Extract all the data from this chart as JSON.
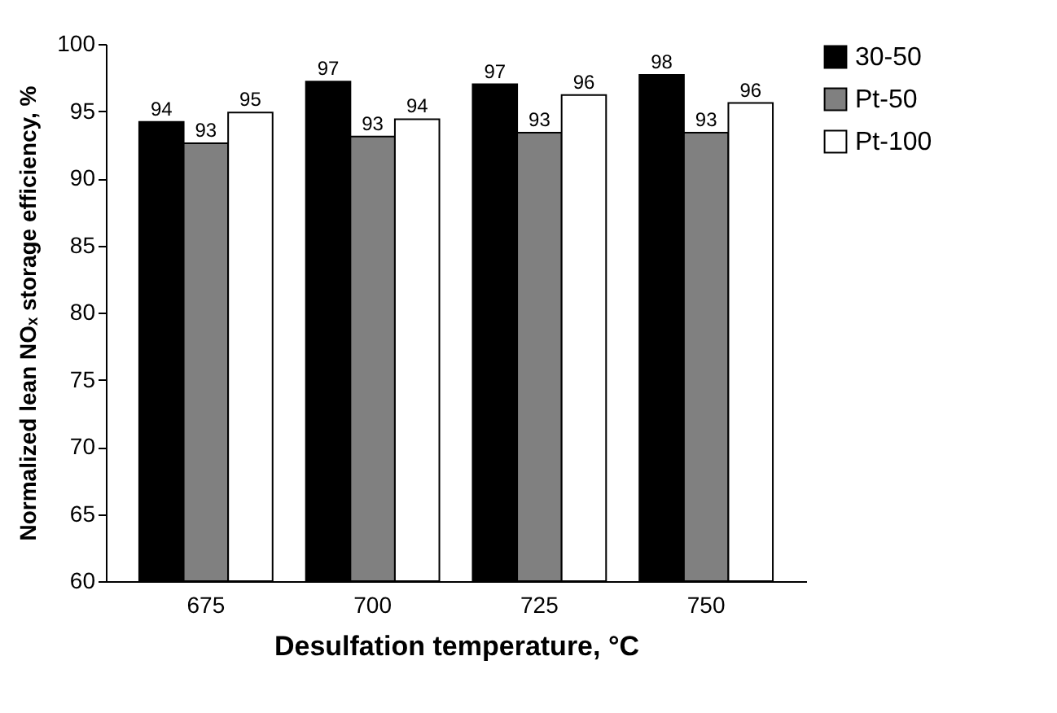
{
  "chart_data": {
    "type": "bar",
    "xlabel": "Desulfation temperature, °C",
    "ylabel": "Normalized lean NOₓ storage efficiency, %",
    "categories": [
      "675",
      "700",
      "725",
      "750"
    ],
    "series": [
      {
        "name": "30-50",
        "color": "#000000",
        "values": [
          94.2,
          97.2,
          97.0,
          97.7
        ],
        "value_labels": [
          "94",
          "97",
          "97",
          "98"
        ]
      },
      {
        "name": "Pt-50",
        "color": "#808080",
        "values": [
          92.6,
          93.1,
          93.4,
          93.4
        ],
        "value_labels": [
          "93",
          "93",
          "93",
          "93"
        ]
      },
      {
        "name": "Pt-100",
        "color": "#ffffff",
        "values": [
          94.9,
          94.4,
          96.2,
          95.6
        ],
        "value_labels": [
          "95",
          "94",
          "96",
          "96"
        ]
      }
    ],
    "ylim": [
      60,
      100
    ],
    "yticks": [
      60,
      65,
      70,
      75,
      80,
      85,
      90,
      95,
      100
    ],
    "grid": false,
    "legend": "top right"
  }
}
